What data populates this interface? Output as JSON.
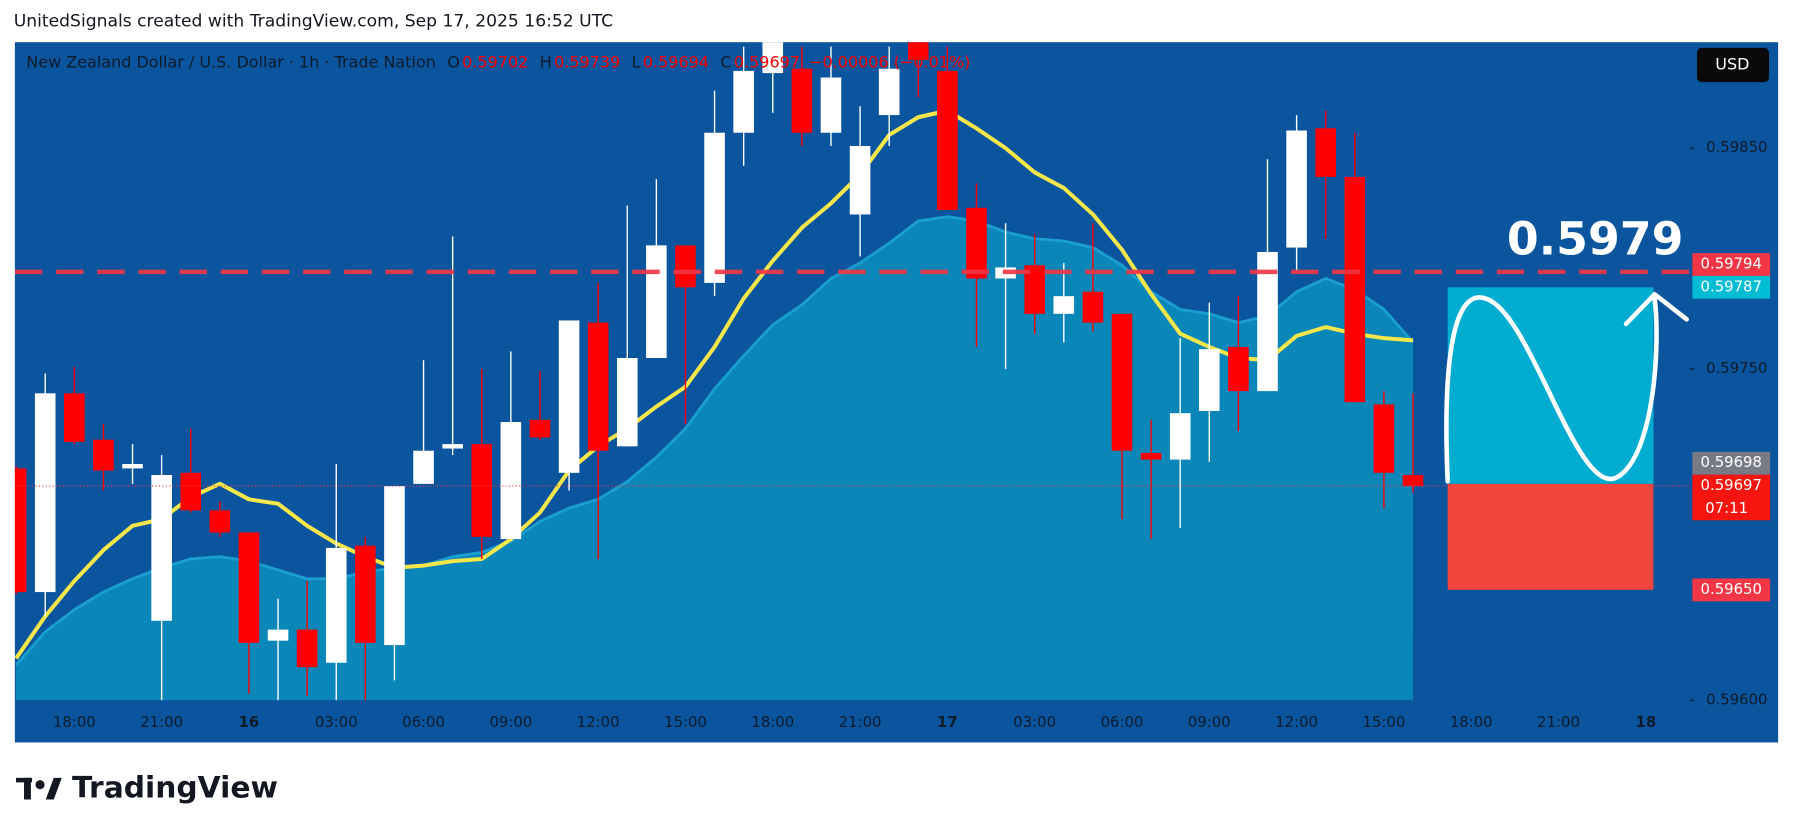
{
  "header": "UnitedSignals created with TradingView.com, Sep 17, 2025 16:52 UTC",
  "logo": "TradingView",
  "chart_data": {
    "type": "candlestick",
    "legend": {
      "symbol": "New Zealand Dollar / U.S. Dollar · 1h · Trade Nation",
      "fields": [
        {
          "key": "O",
          "value": 0.59702
        },
        {
          "key": "H",
          "value": 0.59739
        },
        {
          "key": "L",
          "value": 0.59694
        },
        {
          "key": "C",
          "value": 0.59697
        }
      ],
      "change": "−0.00006 (−0.01%)"
    },
    "currency": "USD",
    "up_color": "#ffffff",
    "down_color": "#ff0000",
    "categories": [
      null,
      null,
      "18:00",
      null,
      null,
      "21:00",
      null,
      null,
      "16",
      null,
      null,
      "03:00",
      null,
      null,
      "06:00",
      null,
      null,
      "09:00",
      null,
      null,
      "12:00",
      null,
      null,
      "15:00",
      null,
      null,
      "18:00",
      null,
      null,
      "21:00",
      null,
      null,
      "17",
      null,
      null,
      "03:00",
      null,
      null,
      "06:00",
      null,
      null,
      "09:00",
      null,
      null,
      "12:00",
      null,
      null,
      "15:00",
      null,
      null,
      "18:00",
      null,
      null,
      "21:00",
      null,
      null,
      "18"
    ],
    "open": [
      0.59705,
      0.59649,
      0.59739,
      0.59718,
      0.59705,
      0.59636,
      0.59703,
      0.59686,
      0.59676,
      0.59627,
      0.59632,
      0.59617,
      0.5967,
      0.59625,
      0.59698,
      0.59714,
      0.59716,
      0.59673,
      0.59727,
      0.59703,
      0.59771,
      0.59715,
      0.59755,
      0.59806,
      0.59789,
      0.59857,
      0.59884,
      0.59886,
      0.59857,
      0.5982,
      0.59865,
      0.59905,
      0.59885,
      0.59823,
      0.59791,
      0.59797,
      0.59775,
      0.59785,
      0.59775,
      0.59712,
      0.59709,
      0.59731,
      0.5976,
      0.5974,
      0.59805,
      0.59859,
      0.59837,
      0.59734,
      0.59702,
      null,
      null,
      null,
      null,
      null,
      null,
      null,
      null
    ],
    "high": [
      0.59706,
      0.59748,
      0.59751,
      0.59725,
      0.59716,
      0.59711,
      0.59723,
      0.5969,
      0.59676,
      0.59646,
      0.59654,
      0.59707,
      0.59674,
      0.59697,
      0.59754,
      0.5981,
      0.5975,
      0.59758,
      0.59749,
      0.59772,
      0.59789,
      0.59824,
      0.59836,
      0.59806,
      0.59876,
      0.59896,
      0.59915,
      0.59896,
      0.59896,
      0.59869,
      0.59896,
      0.59915,
      0.59896,
      0.59834,
      0.59816,
      0.59811,
      0.59798,
      0.59816,
      0.59775,
      0.59727,
      0.59764,
      0.5978,
      0.59783,
      0.59845,
      0.59865,
      0.59867,
      0.59857,
      0.5974,
      0.59739,
      null,
      null,
      null,
      null,
      null,
      null,
      null,
      null
    ],
    "low": [
      0.59648,
      0.59638,
      0.59716,
      0.59695,
      0.59698,
      0.596,
      0.59685,
      0.59674,
      0.59603,
      0.596,
      0.59602,
      0.596,
      0.596,
      0.59609,
      0.59698,
      0.59711,
      0.59664,
      0.59673,
      0.59718,
      0.59695,
      0.59664,
      0.59715,
      0.59755,
      0.59725,
      0.59783,
      0.59842,
      0.59866,
      0.59851,
      0.59851,
      0.59801,
      0.59851,
      0.59873,
      0.59822,
      0.5976,
      0.5975,
      0.59766,
      0.59762,
      0.59767,
      0.59682,
      0.59673,
      0.59678,
      0.59708,
      0.59722,
      0.5974,
      0.59794,
      0.59809,
      0.59735,
      0.59687,
      0.59694,
      null,
      null,
      null,
      null,
      null,
      null,
      null,
      null
    ],
    "close": [
      0.59649,
      0.59739,
      0.59717,
      0.59704,
      0.59707,
      0.59702,
      0.59686,
      0.59676,
      0.59626,
      0.59632,
      0.59615,
      0.59669,
      0.59626,
      0.59697,
      0.59713,
      0.59716,
      0.59674,
      0.59726,
      0.59719,
      0.59772,
      0.59713,
      0.59755,
      0.59806,
      0.59787,
      0.59857,
      0.59885,
      0.59905,
      0.59857,
      0.59882,
      0.59851,
      0.59886,
      0.5989,
      0.59822,
      0.59791,
      0.59796,
      0.59775,
      0.59783,
      0.59771,
      0.59713,
      0.59709,
      0.5973,
      0.59759,
      0.5974,
      0.59803,
      0.59858,
      0.59837,
      0.59735,
      0.59703,
      0.59697,
      null,
      null,
      null,
      null,
      null,
      null,
      null,
      null
    ],
    "lines": [
      {
        "color": "#1a9fd0",
        "fill": "#0a86b8",
        "values": [
          0.59616,
          0.59631,
          0.59641,
          0.59649,
          0.59655,
          0.5966,
          0.59664,
          0.59665,
          0.59663,
          0.59659,
          0.59655,
          0.59655,
          0.59658,
          0.5966,
          0.59661,
          0.59665,
          0.59667,
          0.59672,
          0.59681,
          0.59687,
          0.59691,
          0.59699,
          0.5971,
          0.59723,
          0.59741,
          0.59756,
          0.5977,
          0.59779,
          0.59791,
          0.59798,
          0.59807,
          0.59817,
          0.59819,
          0.59817,
          0.59812,
          0.59809,
          0.59808,
          0.59805,
          0.59797,
          0.59785,
          0.59777,
          0.59775,
          0.59771,
          0.59774,
          0.59785,
          0.59791,
          0.59786,
          0.59777,
          0.59762,
          null,
          null,
          null,
          null,
          null,
          null,
          null,
          null
        ]
      },
      {
        "color": "#f5e64a",
        "values": [
          0.59619,
          0.59638,
          0.59654,
          0.59668,
          0.59679,
          0.59682,
          0.59692,
          0.59698,
          0.59691,
          0.59689,
          0.59679,
          0.59671,
          0.59665,
          0.5966,
          0.59661,
          0.59663,
          0.59664,
          0.59673,
          0.59685,
          0.59704,
          0.59715,
          0.59723,
          0.59733,
          0.59742,
          0.5976,
          0.59782,
          0.59799,
          0.59814,
          0.59825,
          0.59838,
          0.59856,
          0.59864,
          0.59867,
          0.59859,
          0.5985,
          0.59839,
          0.59832,
          0.5982,
          0.59804,
          0.59784,
          0.59766,
          0.5976,
          0.59755,
          0.59754,
          0.59765,
          0.59769,
          0.59766,
          0.59764,
          0.59763,
          null,
          null,
          null,
          null,
          null,
          null,
          null,
          null
        ]
      }
    ],
    "ylim": [
      0.596,
      0.59898
    ],
    "yticks": [
      {
        "value": 0.596,
        "label": "0.59600"
      },
      {
        "value": 0.5975,
        "label": "0.59750"
      },
      {
        "value": 0.5985,
        "label": "0.59850"
      }
    ],
    "grid": false,
    "price_labels": [
      {
        "value": 0.59794,
        "color": "#f23645"
      },
      {
        "value": 0.59787,
        "color": "#00bcd4"
      },
      {
        "value": 0.59698,
        "color": "#787b86"
      },
      {
        "value": 0.59697,
        "color": "#f7150f",
        "countdown": "07:11"
      },
      {
        "value": 0.5965,
        "label": "0.59650",
        "color": "#f23645"
      }
    ],
    "annotation": 0.5979
  }
}
